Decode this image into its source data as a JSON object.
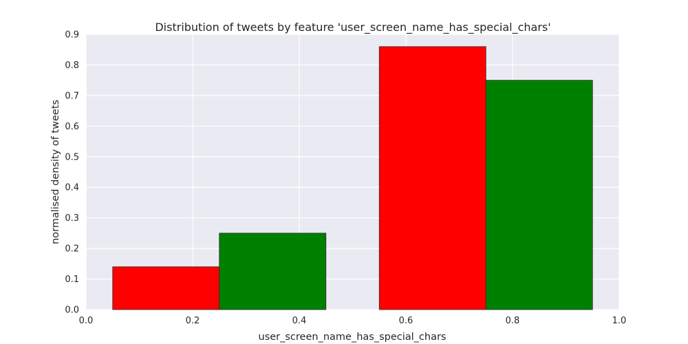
{
  "chart_data": {
    "type": "bar",
    "title": "Distribution of tweets by feature 'user_screen_name_has_special_chars'",
    "xlabel": "user_screen_name_has_special_chars",
    "ylabel": "normalised density of tweets",
    "xlim": [
      0.0,
      1.0
    ],
    "ylim": [
      0.0,
      0.9
    ],
    "x_ticks": [
      "0.0",
      "0.2",
      "0.4",
      "0.6",
      "0.8",
      "1.0"
    ],
    "y_ticks": [
      "0.0",
      "0.1",
      "0.2",
      "0.3",
      "0.4",
      "0.5",
      "0.6",
      "0.7",
      "0.8",
      "0.9"
    ],
    "grid": true,
    "bars": [
      {
        "x0": 0.05,
        "x1": 0.25,
        "value": 0.14,
        "color": "#ff0000"
      },
      {
        "x0": 0.25,
        "x1": 0.45,
        "value": 0.25,
        "color": "#008000"
      },
      {
        "x0": 0.55,
        "x1": 0.75,
        "value": 0.86,
        "color": "#ff0000"
      },
      {
        "x0": 0.75,
        "x1": 0.95,
        "value": 0.75,
        "color": "#008000"
      }
    ],
    "colors": {
      "plot_background": "#eaeaf2",
      "grid": "#ffffff",
      "bar_edge": "#2b2b2b"
    }
  }
}
